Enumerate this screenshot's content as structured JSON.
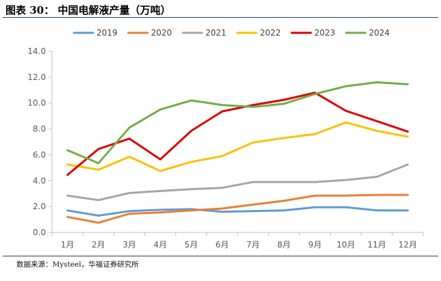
{
  "header": {
    "title": "图表 30：  中国电解液产量（万吨）"
  },
  "footer": {
    "source": "数据来源：Mysteel，华福证券研究所"
  },
  "chart_data": {
    "type": "line",
    "title": "",
    "xlabel": "",
    "ylabel": "",
    "categories": [
      "1月",
      "2月",
      "3月",
      "4月",
      "5月",
      "6月",
      "7月",
      "8月",
      "9月",
      "10月",
      "11月",
      "12月"
    ],
    "ylim": [
      0,
      14
    ],
    "yticks": [
      "0.0",
      "2.0",
      "4.0",
      "6.0",
      "8.0",
      "10.0",
      "12.0",
      "14.0"
    ],
    "grid": false,
    "legend": "top",
    "series": [
      {
        "name": "2019",
        "color": "#5b9bd5",
        "values": [
          1.7,
          1.3,
          1.65,
          1.75,
          1.8,
          1.6,
          1.65,
          1.7,
          1.95,
          1.95,
          1.7,
          1.7
        ]
      },
      {
        "name": "2020",
        "color": "#ed7d31",
        "values": [
          1.2,
          0.75,
          1.45,
          1.55,
          1.7,
          1.85,
          2.15,
          2.45,
          2.85,
          2.85,
          2.9,
          2.9
        ]
      },
      {
        "name": "2021",
        "color": "#a5a5a5",
        "values": [
          2.85,
          2.5,
          3.05,
          3.2,
          3.35,
          3.45,
          3.9,
          3.9,
          3.9,
          4.05,
          4.3,
          5.25
        ]
      },
      {
        "name": "2022",
        "color": "#ffc000",
        "values": [
          5.25,
          4.85,
          5.85,
          4.75,
          5.45,
          5.9,
          6.95,
          7.3,
          7.6,
          8.5,
          7.85,
          7.4
        ]
      },
      {
        "name": "2023",
        "color": "#e00000",
        "values": [
          4.45,
          6.45,
          7.25,
          5.65,
          7.85,
          9.35,
          9.85,
          10.25,
          10.8,
          9.4,
          8.6,
          7.8
        ]
      },
      {
        "name": "2024",
        "color": "#70ad47",
        "values": [
          6.35,
          5.35,
          8.1,
          9.5,
          10.2,
          9.85,
          9.7,
          9.95,
          10.7,
          11.3,
          11.6,
          11.45
        ]
      }
    ]
  }
}
